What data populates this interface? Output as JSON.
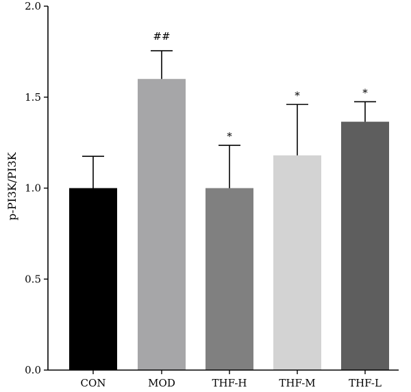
{
  "chart_data": {
    "type": "bar",
    "ylabel": "p-PI3K/PI3K",
    "xlabel": "",
    "ylim": [
      0,
      2.0
    ],
    "yticks": [
      "0.0",
      "0.5",
      "1.0",
      "1.5",
      "2.0"
    ],
    "grid": false,
    "categories": [
      "CON",
      "MOD",
      "THF-H",
      "THF-M",
      "THF-L"
    ],
    "values": [
      1.0,
      1.6,
      1.0,
      1.18,
      1.365
    ],
    "error_upper": [
      1.175,
      1.755,
      1.235,
      1.46,
      1.475
    ],
    "annotations": [
      "",
      "##",
      "*",
      "*",
      "*"
    ],
    "colors": [
      "#000000",
      "#a6a6a8",
      "#808080",
      "#d3d3d3",
      "#5e5e5e"
    ]
  }
}
